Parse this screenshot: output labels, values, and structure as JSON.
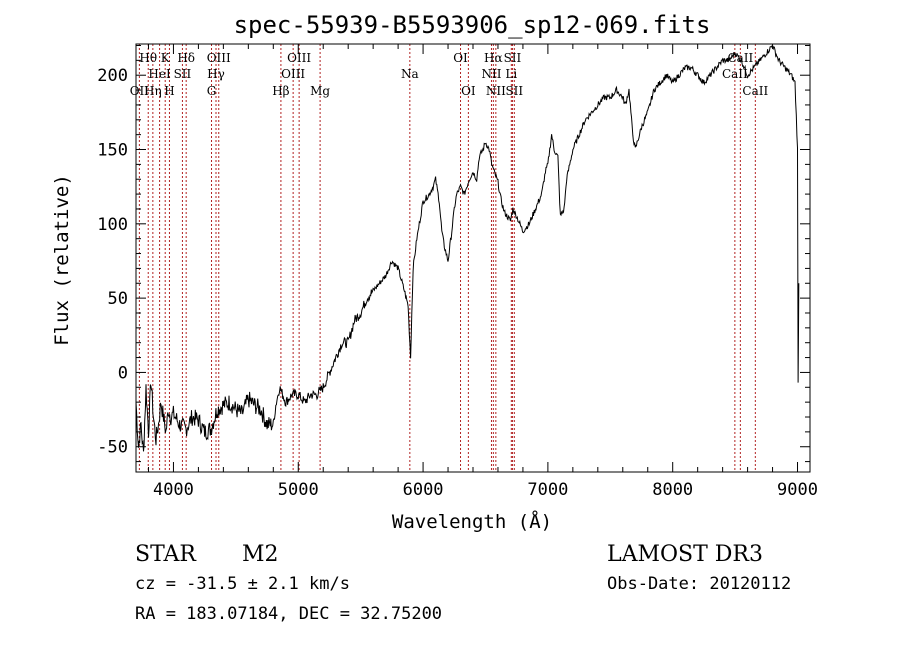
{
  "chart_data": {
    "type": "line",
    "title": "spec-55939-B5593906_sp12-069.fits",
    "xlabel": "Wavelength (Å)",
    "ylabel": "Flux (relative)",
    "xlim": [
      3700,
      9100
    ],
    "ylim": [
      -67,
      221
    ],
    "x_ticks": [
      4000,
      5000,
      6000,
      7000,
      8000,
      9000
    ],
    "y_ticks": [
      -50,
      0,
      50,
      100,
      150,
      200
    ],
    "grid": false,
    "line_color": "#000000",
    "marker_color": "#b22222",
    "spectrum": {
      "x": [
        3700,
        3720,
        3740,
        3760,
        3780,
        3800,
        3820,
        3840,
        3860,
        3880,
        3900,
        3920,
        3940,
        3960,
        3980,
        4000,
        4050,
        4100,
        4150,
        4200,
        4250,
        4300,
        4350,
        4400,
        4450,
        4500,
        4550,
        4600,
        4650,
        4700,
        4750,
        4800,
        4820,
        4850,
        4900,
        4950,
        5000,
        5050,
        5100,
        5150,
        5200,
        5250,
        5300,
        5350,
        5400,
        5450,
        5500,
        5550,
        5600,
        5650,
        5700,
        5750,
        5800,
        5850,
        5880,
        5900,
        5920,
        5950,
        6000,
        6050,
        6080,
        6100,
        6130,
        6150,
        6170,
        6200,
        6230,
        6250,
        6270,
        6300,
        6330,
        6350,
        6370,
        6400,
        6430,
        6450,
        6480,
        6500,
        6530,
        6550,
        6570,
        6600,
        6620,
        6650,
        6700,
        6720,
        6750,
        6800,
        6850,
        6900,
        6950,
        6980,
        7000,
        7030,
        7050,
        7080,
        7100,
        7130,
        7150,
        7200,
        7250,
        7300,
        7350,
        7400,
        7450,
        7500,
        7550,
        7600,
        7620,
        7650,
        7680,
        7700,
        7750,
        7800,
        7850,
        7900,
        7950,
        8000,
        8050,
        8100,
        8150,
        8200,
        8250,
        8300,
        8350,
        8400,
        8450,
        8500,
        8550,
        8600,
        8650,
        8700,
        8750,
        8800,
        8850,
        8900,
        8950,
        8980,
        9000,
        9005,
        9010
      ],
      "y": [
        -20,
        -50,
        -35,
        -55,
        -10,
        -40,
        -5,
        -30,
        -45,
        -35,
        -20,
        -30,
        -40,
        -25,
        -30,
        -28,
        -35,
        -38,
        -30,
        -32,
        -40,
        -38,
        -25,
        -22,
        -20,
        -25,
        -28,
        -18,
        -22,
        -25,
        -35,
        -35,
        -22,
        -10,
        -20,
        -15,
        -15,
        -20,
        -15,
        -15,
        -10,
        0,
        10,
        20,
        20,
        35,
        40,
        50,
        55,
        60,
        65,
        75,
        70,
        55,
        45,
        10,
        70,
        90,
        115,
        120,
        125,
        130,
        115,
        95,
        85,
        75,
        95,
        110,
        120,
        125,
        120,
        125,
        130,
        135,
        130,
        145,
        150,
        155,
        150,
        140,
        135,
        128,
        118,
        108,
        102,
        110,
        105,
        95,
        100,
        110,
        120,
        135,
        140,
        160,
        150,
        145,
        105,
        110,
        130,
        150,
        160,
        170,
        175,
        180,
        185,
        185,
        190,
        185,
        180,
        190,
        160,
        150,
        165,
        175,
        190,
        195,
        200,
        195,
        200,
        205,
        205,
        200,
        195,
        200,
        205,
        210,
        210,
        215,
        210,
        200,
        205,
        210,
        215,
        220,
        210,
        205,
        200,
        195,
        150,
        -5,
        60
      ]
    },
    "line_markers": [
      {
        "label": "Hθ",
        "x": 3798,
        "row": 1
      },
      {
        "label": "OII",
        "x": 3727,
        "row": 3
      },
      {
        "label": "Hη",
        "x": 3835,
        "row": 3
      },
      {
        "label": "HeI",
        "x": 3889,
        "row": 2
      },
      {
        "label": "K",
        "x": 3934,
        "row": 1
      },
      {
        "label": "H",
        "x": 3968,
        "row": 3
      },
      {
        "label": "SII",
        "x": 4072,
        "row": 2
      },
      {
        "label": "Hδ",
        "x": 4102,
        "row": 1
      },
      {
        "label": "G",
        "x": 4305,
        "row": 3
      },
      {
        "label": "Hγ",
        "x": 4341,
        "row": 2
      },
      {
        "label": "OIII",
        "x": 4363,
        "row": 1
      },
      {
        "label": "Hβ",
        "x": 4861,
        "row": 3
      },
      {
        "label": "OIII",
        "x": 4959,
        "row": 2
      },
      {
        "label": "OIII",
        "x": 5007,
        "row": 1
      },
      {
        "label": "Mg",
        "x": 5175,
        "row": 3
      },
      {
        "label": "Na",
        "x": 5894,
        "row": 2
      },
      {
        "label": "OI",
        "x": 6300,
        "row": 1
      },
      {
        "label": "OI",
        "x": 6363,
        "row": 3
      },
      {
        "label": "NII",
        "x": 6548,
        "row": 2
      },
      {
        "label": "Hα",
        "x": 6563,
        "row": 1
      },
      {
        "label": "NII",
        "x": 6583,
        "row": 3
      },
      {
        "label": "Li",
        "x": 6707,
        "row": 2
      },
      {
        "label": "SII",
        "x": 6716,
        "row": 1
      },
      {
        "label": "SII",
        "x": 6731,
        "row": 3
      },
      {
        "label": "CaII",
        "x": 8498,
        "row": 2
      },
      {
        "label": "CaII",
        "x": 8542,
        "row": 1
      },
      {
        "label": "CaII",
        "x": 8662,
        "row": 3
      }
    ]
  },
  "info": {
    "class": "STAR",
    "subclass": "M2",
    "survey": "LAMOST DR3",
    "cz": "cz = -31.5 ± 2.1 km/s",
    "obs_date": "Obs-Date: 20120112",
    "radec": "RA = 183.07184, DEC =  32.75200"
  }
}
